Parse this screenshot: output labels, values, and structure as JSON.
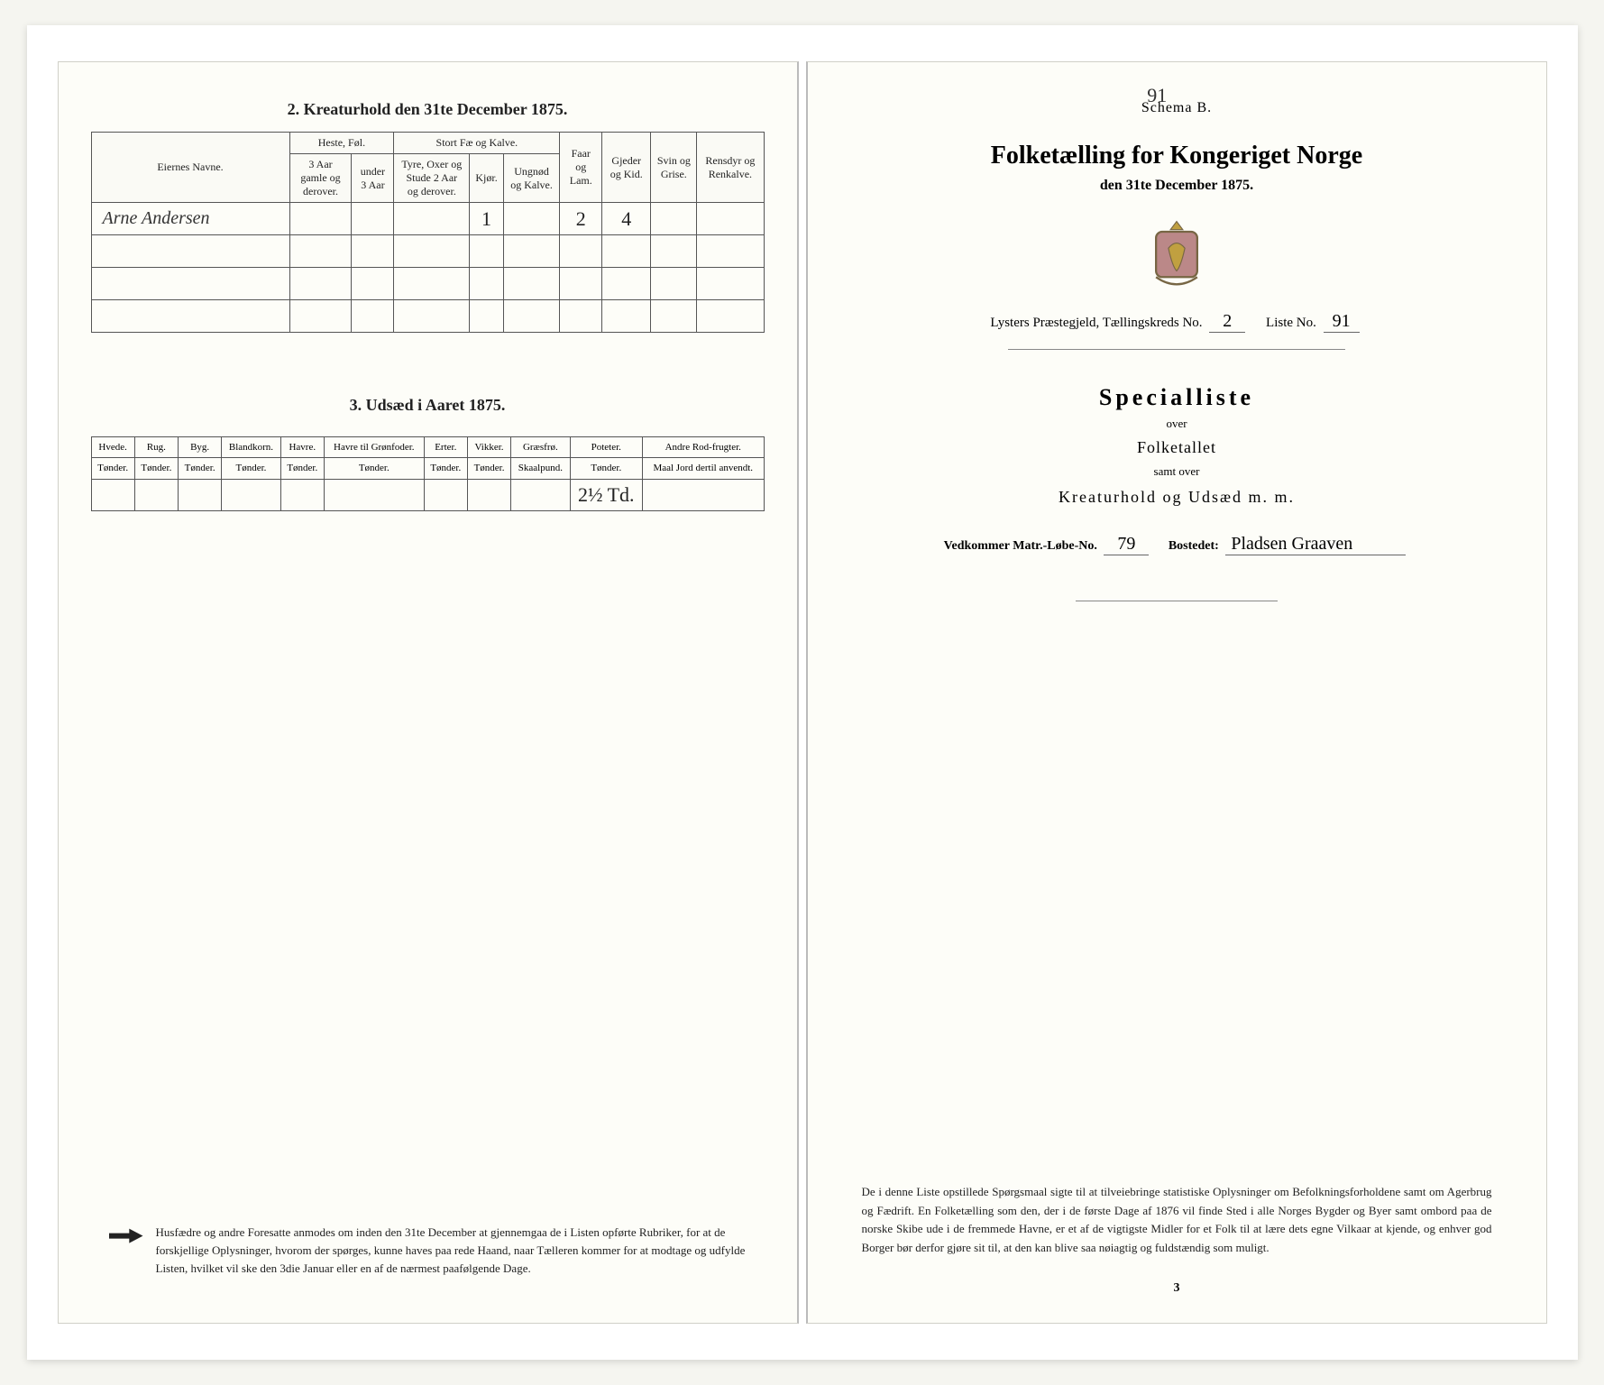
{
  "leftPage": {
    "section2": {
      "title": "2.  Kreaturhold den 31te December 1875.",
      "headers": {
        "name": "Eiernes Navne.",
        "hesteGroup": "Heste, Føl.",
        "heste_a": "3 Aar gamle og derover.",
        "heste_b": "under 3 Aar",
        "stortGroup": "Stort Fæ og Kalve.",
        "stort_a": "Tyre, Oxer og Stude 2 Aar og derover.",
        "stort_b": "Kjør.",
        "stort_c": "Ungnød og Kalve.",
        "faar": "Faar og Lam.",
        "gjeder": "Gjeder og Kid.",
        "svin": "Svin og Grise.",
        "rensdyr": "Rensdyr og Renkalve."
      },
      "rows": [
        {
          "name": "Arne Andersen",
          "heste_a": "",
          "heste_b": "",
          "stort_a": "",
          "stort_b": "1",
          "stort_c": "",
          "faar": "2",
          "gjeder": "4",
          "svin": "",
          "rensdyr": ""
        },
        {
          "name": "",
          "heste_a": "",
          "heste_b": "",
          "stort_a": "",
          "stort_b": "",
          "stort_c": "",
          "faar": "",
          "gjeder": "",
          "svin": "",
          "rensdyr": ""
        },
        {
          "name": "",
          "heste_a": "",
          "heste_b": "",
          "stort_a": "",
          "stort_b": "",
          "stort_c": "",
          "faar": "",
          "gjeder": "",
          "svin": "",
          "rensdyr": ""
        },
        {
          "name": "",
          "heste_a": "",
          "heste_b": "",
          "stort_a": "",
          "stort_b": "",
          "stort_c": "",
          "faar": "",
          "gjeder": "",
          "svin": "",
          "rensdyr": ""
        }
      ]
    },
    "section3": {
      "title": "3.  Udsæd i Aaret 1875.",
      "columns": [
        {
          "top": "Hvede.",
          "bot": "Tønder."
        },
        {
          "top": "Rug.",
          "bot": "Tønder."
        },
        {
          "top": "Byg.",
          "bot": "Tønder."
        },
        {
          "top": "Blandkorn.",
          "bot": "Tønder."
        },
        {
          "top": "Havre.",
          "bot": "Tønder."
        },
        {
          "top": "Havre til Grønfoder.",
          "bot": "Tønder."
        },
        {
          "top": "Erter.",
          "bot": "Tønder."
        },
        {
          "top": "Vikker.",
          "bot": "Tønder."
        },
        {
          "top": "Græsfrø.",
          "bot": "Skaalpund."
        },
        {
          "top": "Poteter.",
          "bot": "Tønder."
        },
        {
          "top": "Andre Rod-frugter.",
          "bot": "Maal Jord dertil anvendt."
        }
      ],
      "row": [
        "",
        "",
        "",
        "",
        "",
        "",
        "",
        "",
        "",
        "2½ Td.",
        ""
      ]
    },
    "footnote": "Husfædre og andre Foresatte anmodes om inden den 31te December at gjennemgaa de i Listen opførte Rubriker, for at de forskjellige Oplysninger, hvorom der spørges, kunne haves paa rede Haand, naar Tælleren kommer for at modtage og udfylde Listen, hvilket vil ske den 3die Januar eller en af de nærmest paafølgende Dage."
  },
  "rightPage": {
    "foldNumber": "91",
    "schema": "Schema B.",
    "mainTitle": "Folketælling for Kongeriget Norge",
    "subDate": "den 31te December 1875.",
    "metaLine": {
      "lysters": "Lysters",
      "praest": "Præstegjeld, Tællingskreds No.",
      "kredsNo": "2",
      "listeLabel": "Liste No.",
      "listeNo": "91"
    },
    "specialliste": "Specialliste",
    "over": "over",
    "folketallet": "Folketallet",
    "samt": "samt over",
    "kreat": "Kreaturhold og Udsæd m. m.",
    "vedkLabel": "Vedkommer Matr.-Løbe-No.",
    "matrNo": "79",
    "bostedetLabel": "Bostedet:",
    "bostedet": "Pladsen Graaven",
    "footnote": "De i denne Liste opstillede Spørgsmaal sigte til at tilveiebringe statistiske Oplysninger om Befolkningsforholdene samt om Agerbrug og Fædrift. En Folketælling som den, der i de første Dage af 1876 vil finde Sted i alle Norges Bygder og Byer samt ombord paa de norske Skibe ude i de fremmede Havne, er et af de vigtigste Midler for et Folk til at lære dets egne Vilkaar at kjende, og enhver god Borger bør derfor gjøre sit til, at den kan blive saa nøiagtig og fuldstændig som muligt.",
    "pageNum": "3"
  },
  "styling": {
    "bg": "#f5f5f0",
    "paper": "#fdfdf8",
    "border": "#555555",
    "ink": "#222222",
    "handColor": "#333333"
  }
}
